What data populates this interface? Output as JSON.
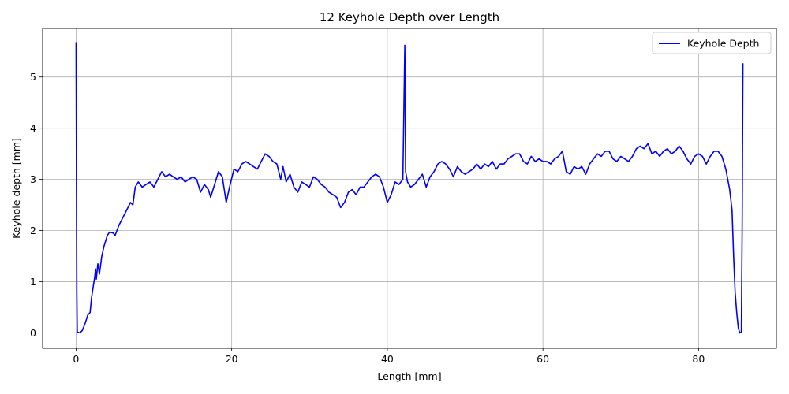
{
  "chart_data": {
    "type": "line",
    "title": "12 Keyhole Depth over Length",
    "xlabel": "Length [mm]",
    "ylabel": "Keyhole depth [mm]",
    "xlim": [
      -4.3,
      90
    ],
    "ylim": [
      -0.3,
      5.95
    ],
    "xticks": [
      0,
      20,
      40,
      60,
      80
    ],
    "yticks": [
      0,
      1,
      2,
      3,
      4,
      5
    ],
    "grid": true,
    "legend_position": "top-right",
    "series": [
      {
        "name": "Keyhole Depth",
        "color": "#0000ff",
        "points": [
          [
            0.0,
            5.68
          ],
          [
            0.05,
            3.0
          ],
          [
            0.1,
            0.8
          ],
          [
            0.15,
            0.02
          ],
          [
            0.5,
            0.0
          ],
          [
            0.8,
            0.05
          ],
          [
            1.2,
            0.2
          ],
          [
            1.5,
            0.35
          ],
          [
            1.8,
            0.4
          ],
          [
            2.0,
            0.7
          ],
          [
            2.2,
            0.9
          ],
          [
            2.4,
            1.1
          ],
          [
            2.5,
            1.25
          ],
          [
            2.6,
            1.05
          ],
          [
            2.8,
            1.35
          ],
          [
            3.0,
            1.15
          ],
          [
            3.3,
            1.5
          ],
          [
            3.6,
            1.7
          ],
          [
            4.0,
            1.9
          ],
          [
            4.3,
            1.97
          ],
          [
            4.8,
            1.95
          ],
          [
            5.0,
            1.9
          ],
          [
            5.5,
            2.1
          ],
          [
            6.0,
            2.25
          ],
          [
            6.5,
            2.4
          ],
          [
            7.0,
            2.55
          ],
          [
            7.3,
            2.5
          ],
          [
            7.6,
            2.85
          ],
          [
            8.0,
            2.95
          ],
          [
            8.5,
            2.85
          ],
          [
            9.0,
            2.9
          ],
          [
            9.5,
            2.95
          ],
          [
            10.0,
            2.85
          ],
          [
            10.5,
            3.0
          ],
          [
            11.0,
            3.15
          ],
          [
            11.5,
            3.05
          ],
          [
            12.0,
            3.1
          ],
          [
            12.5,
            3.05
          ],
          [
            13.0,
            3.0
          ],
          [
            13.5,
            3.05
          ],
          [
            14.0,
            2.95
          ],
          [
            14.5,
            3.0
          ],
          [
            15.0,
            3.05
          ],
          [
            15.5,
            3.0
          ],
          [
            16.0,
            2.75
          ],
          [
            16.5,
            2.9
          ],
          [
            17.0,
            2.8
          ],
          [
            17.3,
            2.65
          ],
          [
            17.8,
            2.9
          ],
          [
            18.3,
            3.15
          ],
          [
            18.8,
            3.05
          ],
          [
            19.3,
            2.55
          ],
          [
            19.8,
            2.9
          ],
          [
            20.3,
            3.2
          ],
          [
            20.8,
            3.15
          ],
          [
            21.3,
            3.3
          ],
          [
            21.8,
            3.35
          ],
          [
            22.3,
            3.3
          ],
          [
            22.8,
            3.25
          ],
          [
            23.3,
            3.2
          ],
          [
            23.8,
            3.35
          ],
          [
            24.3,
            3.5
          ],
          [
            24.8,
            3.45
          ],
          [
            25.3,
            3.35
          ],
          [
            25.8,
            3.3
          ],
          [
            26.3,
            3.0
          ],
          [
            26.6,
            3.25
          ],
          [
            27.0,
            2.95
          ],
          [
            27.5,
            3.1
          ],
          [
            28.0,
            2.85
          ],
          [
            28.5,
            2.75
          ],
          [
            29.0,
            2.95
          ],
          [
            29.5,
            2.9
          ],
          [
            30.0,
            2.85
          ],
          [
            30.5,
            3.05
          ],
          [
            31.0,
            3.0
          ],
          [
            31.5,
            2.9
          ],
          [
            32.0,
            2.85
          ],
          [
            32.5,
            2.75
          ],
          [
            33.0,
            2.7
          ],
          [
            33.5,
            2.65
          ],
          [
            34.0,
            2.45
          ],
          [
            34.5,
            2.55
          ],
          [
            35.0,
            2.75
          ],
          [
            35.5,
            2.8
          ],
          [
            36.0,
            2.7
          ],
          [
            36.5,
            2.85
          ],
          [
            37.0,
            2.85
          ],
          [
            37.5,
            2.95
          ],
          [
            38.0,
            3.05
          ],
          [
            38.5,
            3.1
          ],
          [
            39.0,
            3.05
          ],
          [
            39.5,
            2.85
          ],
          [
            40.0,
            2.55
          ],
          [
            40.5,
            2.7
          ],
          [
            41.0,
            2.95
          ],
          [
            41.5,
            2.9
          ],
          [
            42.0,
            3.0
          ],
          [
            42.25,
            5.62
          ],
          [
            42.35,
            3.15
          ],
          [
            42.6,
            2.95
          ],
          [
            43.0,
            2.85
          ],
          [
            43.5,
            2.9
          ],
          [
            44.0,
            3.0
          ],
          [
            44.5,
            3.1
          ],
          [
            45.0,
            2.85
          ],
          [
            45.5,
            3.05
          ],
          [
            46.0,
            3.15
          ],
          [
            46.5,
            3.3
          ],
          [
            47.0,
            3.35
          ],
          [
            47.5,
            3.3
          ],
          [
            48.0,
            3.2
          ],
          [
            48.5,
            3.05
          ],
          [
            49.0,
            3.25
          ],
          [
            49.5,
            3.15
          ],
          [
            50.0,
            3.1
          ],
          [
            50.5,
            3.15
          ],
          [
            51.0,
            3.2
          ],
          [
            51.5,
            3.3
          ],
          [
            52.0,
            3.2
          ],
          [
            52.5,
            3.3
          ],
          [
            53.0,
            3.25
          ],
          [
            53.5,
            3.35
          ],
          [
            54.0,
            3.2
          ],
          [
            54.5,
            3.3
          ],
          [
            55.0,
            3.3
          ],
          [
            55.5,
            3.4
          ],
          [
            56.0,
            3.45
          ],
          [
            56.5,
            3.5
          ],
          [
            57.0,
            3.5
          ],
          [
            57.5,
            3.35
          ],
          [
            58.0,
            3.3
          ],
          [
            58.5,
            3.45
          ],
          [
            59.0,
            3.35
          ],
          [
            59.5,
            3.4
          ],
          [
            60.0,
            3.35
          ],
          [
            60.5,
            3.35
          ],
          [
            61.0,
            3.3
          ],
          [
            61.5,
            3.4
          ],
          [
            62.0,
            3.45
          ],
          [
            62.5,
            3.55
          ],
          [
            63.0,
            3.15
          ],
          [
            63.5,
            3.1
          ],
          [
            64.0,
            3.25
          ],
          [
            64.5,
            3.2
          ],
          [
            65.0,
            3.25
          ],
          [
            65.5,
            3.1
          ],
          [
            66.0,
            3.3
          ],
          [
            66.5,
            3.4
          ],
          [
            67.0,
            3.5
          ],
          [
            67.5,
            3.45
          ],
          [
            68.0,
            3.55
          ],
          [
            68.5,
            3.55
          ],
          [
            69.0,
            3.4
          ],
          [
            69.5,
            3.35
          ],
          [
            70.0,
            3.45
          ],
          [
            70.5,
            3.4
          ],
          [
            71.0,
            3.35
          ],
          [
            71.5,
            3.45
          ],
          [
            72.0,
            3.6
          ],
          [
            72.5,
            3.65
          ],
          [
            73.0,
            3.6
          ],
          [
            73.5,
            3.7
          ],
          [
            74.0,
            3.5
          ],
          [
            74.5,
            3.55
          ],
          [
            75.0,
            3.45
          ],
          [
            75.5,
            3.55
          ],
          [
            76.0,
            3.6
          ],
          [
            76.5,
            3.5
          ],
          [
            77.0,
            3.55
          ],
          [
            77.5,
            3.65
          ],
          [
            78.0,
            3.55
          ],
          [
            78.5,
            3.4
          ],
          [
            79.0,
            3.3
          ],
          [
            79.5,
            3.45
          ],
          [
            80.0,
            3.5
          ],
          [
            80.5,
            3.45
          ],
          [
            81.0,
            3.3
          ],
          [
            81.5,
            3.45
          ],
          [
            82.0,
            3.55
          ],
          [
            82.5,
            3.55
          ],
          [
            83.0,
            3.45
          ],
          [
            83.5,
            3.2
          ],
          [
            84.0,
            2.8
          ],
          [
            84.3,
            2.4
          ],
          [
            84.5,
            1.5
          ],
          [
            84.7,
            0.8
          ],
          [
            84.9,
            0.4
          ],
          [
            85.1,
            0.1
          ],
          [
            85.3,
            0.0
          ],
          [
            85.5,
            0.02
          ],
          [
            85.6,
            2.0
          ],
          [
            85.7,
            5.27
          ]
        ]
      }
    ]
  }
}
